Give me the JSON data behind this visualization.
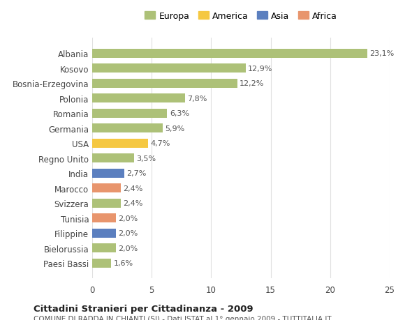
{
  "categories": [
    "Albania",
    "Kosovo",
    "Bosnia-Erzegovina",
    "Polonia",
    "Romania",
    "Germania",
    "USA",
    "Regno Unito",
    "India",
    "Marocco",
    "Svizzera",
    "Tunisia",
    "Filippine",
    "Bielorussia",
    "Paesi Bassi"
  ],
  "values": [
    23.1,
    12.9,
    12.2,
    7.8,
    6.3,
    5.9,
    4.7,
    3.5,
    2.7,
    2.4,
    2.4,
    2.0,
    2.0,
    2.0,
    1.6
  ],
  "bar_colors": [
    "#adc178",
    "#adc178",
    "#adc178",
    "#adc178",
    "#adc178",
    "#adc178",
    "#f5c842",
    "#adc178",
    "#5b7fbf",
    "#e8956d",
    "#adc178",
    "#e8956d",
    "#5b7fbf",
    "#adc178",
    "#adc178"
  ],
  "continent": [
    "Europa",
    "Europa",
    "Europa",
    "Europa",
    "Europa",
    "Europa",
    "America",
    "Europa",
    "Asia",
    "Africa",
    "Europa",
    "Africa",
    "Asia",
    "Europa",
    "Europa"
  ],
  "legend_labels": [
    "Europa",
    "America",
    "Asia",
    "Africa"
  ],
  "legend_colors": [
    "#adc178",
    "#f5c842",
    "#5b7fbf",
    "#e8956d"
  ],
  "title": "Cittadini Stranieri per Cittadinanza - 2009",
  "subtitle": "COMUNE DI RADDA IN CHIANTI (SI) - Dati ISTAT al 1° gennaio 2009 - TUTTITALIA.IT",
  "xlim": [
    0,
    25
  ],
  "xticks": [
    0,
    5,
    10,
    15,
    20,
    25
  ],
  "background_color": "#ffffff",
  "grid_color": "#e0e0e0"
}
